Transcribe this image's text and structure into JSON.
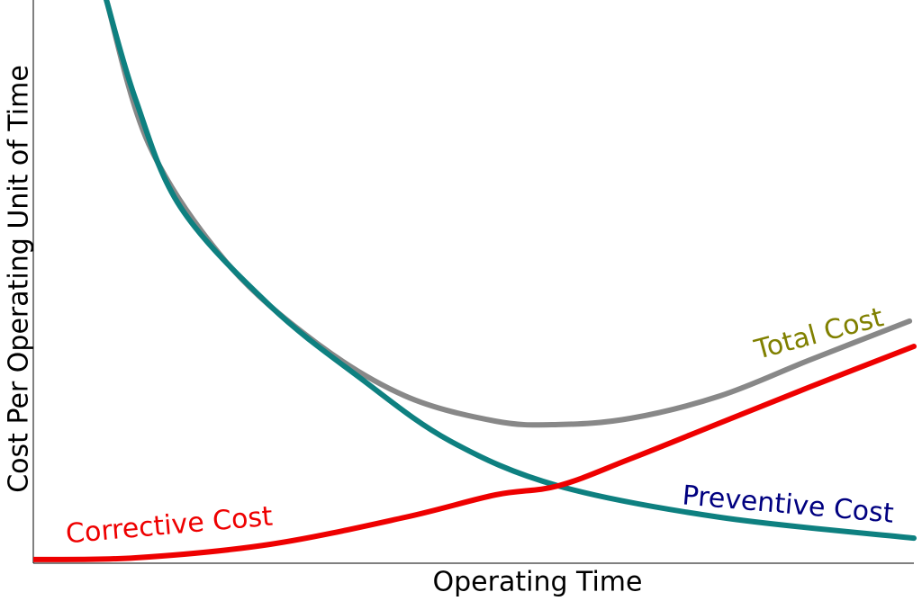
{
  "chart_data": {
    "type": "line",
    "x_label": "Operating Time",
    "y_label": "Cost Per Operating Unit of Time",
    "xlim": [
      0,
      100
    ],
    "ylim": [
      0,
      100
    ],
    "series": [
      {
        "name": "Total Cost",
        "color": "#888888",
        "label_color": "#808000",
        "x": [
          8.3,
          13.1,
          21.8,
          32.0,
          42.2,
          52.5,
          59.6,
          67.8,
          78.0,
          88.2,
          99.5
        ],
        "values": [
          100,
          74.4,
          53.6,
          39.2,
          29.6,
          25.1,
          24.5,
          25.6,
          29.6,
          36.0,
          42.9
        ]
      },
      {
        "name": "Preventive Cost",
        "color": "#0e8080",
        "label_color": "#000080",
        "x": [
          8.3,
          11.6,
          16.7,
          26.9,
          37.1,
          47.3,
          59.6,
          78.0,
          100
        ],
        "values": [
          100,
          82.4,
          63.2,
          45.6,
          32.8,
          21.6,
          13.6,
          8.0,
          4.3
        ]
      },
      {
        "name": "Corrective Cost",
        "color": "#ee0000",
        "label_color": "#ee0000",
        "x": [
          0,
          11.6,
          26.9,
          42.2,
          52.5,
          59.6,
          67.8,
          78.0,
          88.2,
          100
        ],
        "values": [
          0.5,
          0.8,
          3.2,
          8.0,
          12.0,
          13.6,
          18.4,
          24.8,
          31.2,
          38.4
        ]
      }
    ]
  }
}
